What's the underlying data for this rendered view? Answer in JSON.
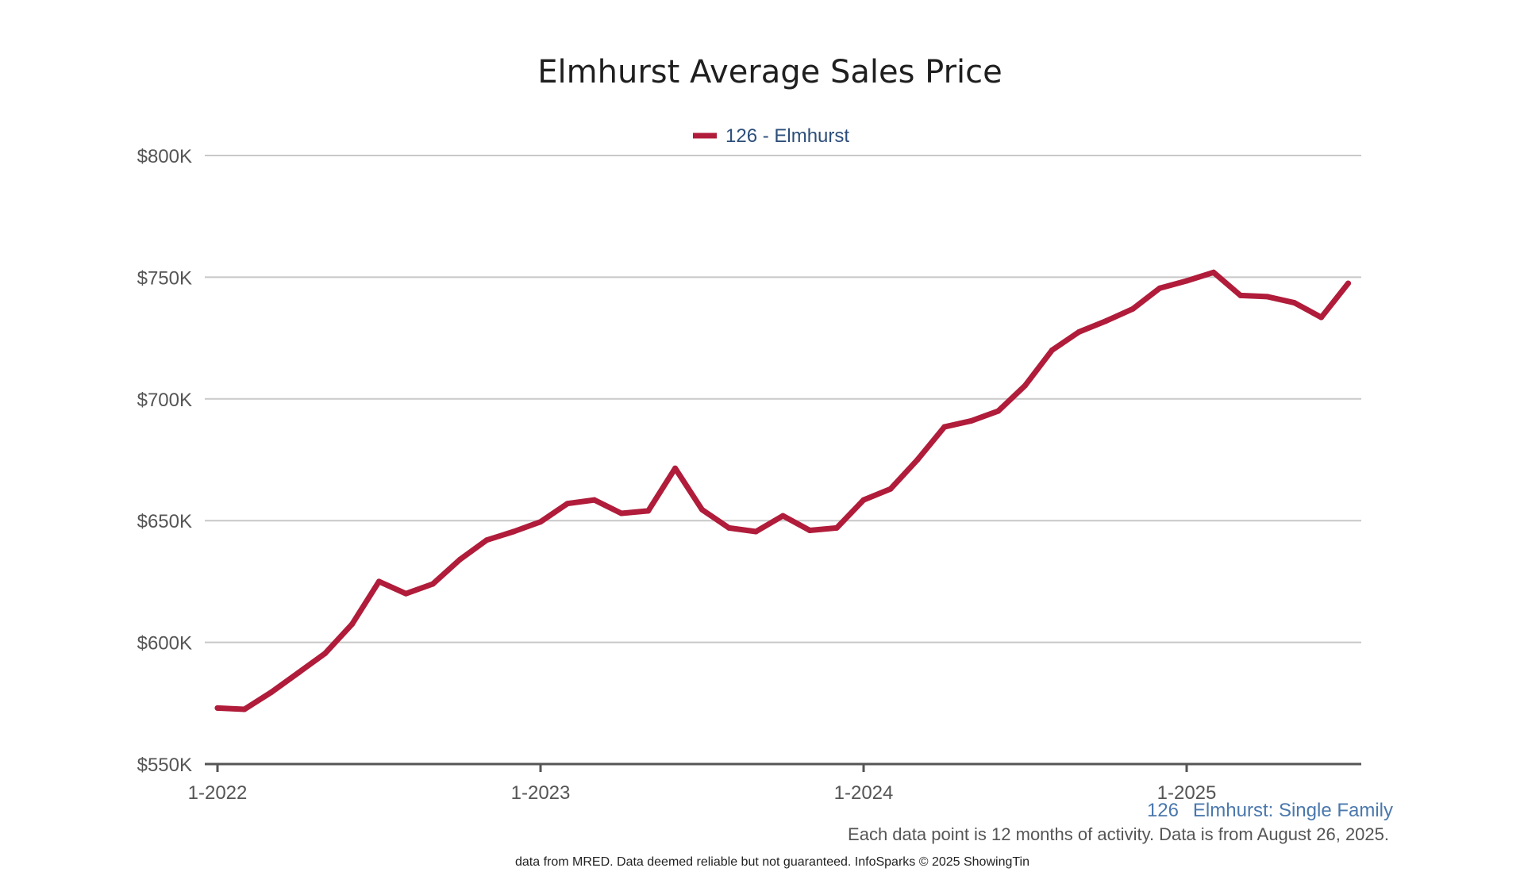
{
  "chart_data": {
    "type": "line",
    "title": "Elmhurst Average Sales Price",
    "y_ticks": [
      "$550K",
      "$600K",
      "$650K",
      "$700K",
      "$750K",
      "$800K"
    ],
    "x_ticks": [
      "1-2022",
      "1-2023",
      "1-2024",
      "1-2025"
    ],
    "ylim": [
      550000,
      800000
    ],
    "grid": true,
    "legend_position": "top-center",
    "series": [
      {
        "name": "126 - Elmhurst",
        "color": "#b01c3a",
        "x": [
          "2022-01",
          "2022-02",
          "2022-03",
          "2022-04",
          "2022-05",
          "2022-06",
          "2022-07",
          "2022-08",
          "2022-09",
          "2022-10",
          "2022-11",
          "2022-12",
          "2023-01",
          "2023-02",
          "2023-03",
          "2023-04",
          "2023-05",
          "2023-06",
          "2023-07",
          "2023-08",
          "2023-09",
          "2023-10",
          "2023-11",
          "2023-12",
          "2024-01",
          "2024-02",
          "2024-03",
          "2024-04",
          "2024-05",
          "2024-06",
          "2024-07",
          "2024-08",
          "2024-09",
          "2024-10",
          "2024-11",
          "2024-12",
          "2025-01",
          "2025-02",
          "2025-03",
          "2025-04",
          "2025-05",
          "2025-06",
          "2025-07"
        ],
        "values": [
          573000,
          572500,
          579500,
          587500,
          595500,
          607500,
          625000,
          620000,
          624000,
          634000,
          642000,
          645500,
          649500,
          657000,
          658500,
          653000,
          654000,
          671500,
          654500,
          647000,
          645500,
          652000,
          646000,
          647000,
          658500,
          663000,
          675000,
          688500,
          691000,
          695000,
          705500,
          720000,
          727500,
          732000,
          737000,
          745500,
          748500,
          752000,
          742500,
          742000,
          739500,
          733500,
          747500
        ]
      }
    ]
  },
  "footer": {
    "area_code": "126",
    "area_label": "Elmhurst: Single Family",
    "note": "Each data point is 12 months of activity. Data is from August 26, 2025.",
    "credit": "data from MRED. Data deemed reliable but not guaranteed. InfoSparks © 2025 ShowingTin"
  }
}
